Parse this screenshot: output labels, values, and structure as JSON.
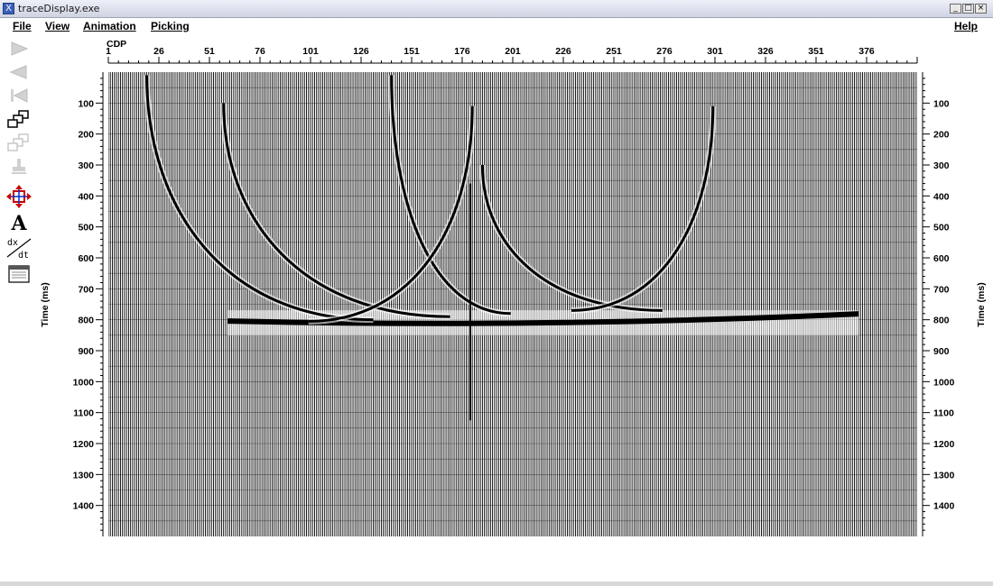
{
  "window": {
    "title": "traceDisplay.exe",
    "app_icon_glyph": "X",
    "controls": [
      "_",
      "□",
      "×"
    ]
  },
  "menu": {
    "file": "File",
    "view": "View",
    "animation": "Animation",
    "picking": "Picking",
    "help": "Help"
  },
  "toolbar": {
    "tools": [
      {
        "name": "play-forward-icon",
        "enabled": false
      },
      {
        "name": "play-backward-icon",
        "enabled": false
      },
      {
        "name": "step-back-icon",
        "enabled": false
      },
      {
        "name": "window-stack-icon",
        "enabled": true
      },
      {
        "name": "window-stack-disabled-icon",
        "enabled": false
      },
      {
        "name": "stamp-icon",
        "enabled": false
      },
      {
        "name": "move-arrows-icon",
        "enabled": true
      },
      {
        "name": "annotate-text-icon",
        "enabled": true,
        "glyph": "A"
      },
      {
        "name": "derivative-icon",
        "enabled": true,
        "glyph_top": "dx",
        "glyph_bottom": "dt"
      },
      {
        "name": "table-window-icon",
        "enabled": true
      }
    ]
  },
  "chart_data": {
    "type": "seismic-wiggle",
    "top_axis": {
      "title": "CDP",
      "ticks": [
        "1",
        "26",
        "51",
        "76",
        "101",
        "126",
        "151",
        "176",
        "201",
        "226",
        "251",
        "276",
        "301",
        "326",
        "351",
        "376"
      ],
      "range": [
        1,
        401
      ]
    },
    "left_axis": {
      "title": "Time (ms)",
      "ticks": [
        "100",
        "200",
        "300",
        "400",
        "500",
        "600",
        "700",
        "800",
        "900",
        "1000",
        "1100",
        "1200",
        "1300",
        "1400"
      ],
      "range": [
        0,
        1500
      ]
    },
    "right_axis": {
      "title": "Time (ms)",
      "ticks": [
        "100",
        "200",
        "300",
        "400",
        "500",
        "600",
        "700",
        "800",
        "900",
        "1000",
        "1100",
        "1200",
        "1300",
        "1400"
      ]
    },
    "events": [
      {
        "type": "flat-reflector",
        "time_ms": 810,
        "cdp_from": 60,
        "cdp_to": 372
      },
      {
        "type": "diffraction-branch",
        "apex_cdp": 20,
        "apex_time": 10,
        "end_cdp": 132,
        "end_time": 800
      },
      {
        "type": "diffraction-branch",
        "apex_cdp": 58,
        "apex_time": 100,
        "end_cdp": 170,
        "end_time": 790
      },
      {
        "type": "diffraction-branch",
        "apex_cdp": 141,
        "apex_time": 10,
        "end_cdp": 200,
        "end_time": 780
      },
      {
        "type": "diffraction-branch",
        "apex_cdp": 181,
        "apex_time": 110,
        "end_cdp": 100,
        "end_time": 805
      },
      {
        "type": "diffraction-branch",
        "apex_cdp": 186,
        "apex_time": 300,
        "end_cdp": 275,
        "end_time": 770
      },
      {
        "type": "diffraction-branch",
        "apex_cdp": 300,
        "apex_time": 110,
        "end_cdp": 230,
        "end_time": 770
      },
      {
        "type": "spike",
        "cdp": 180,
        "time_from": 360,
        "time_to": 1125
      }
    ]
  }
}
